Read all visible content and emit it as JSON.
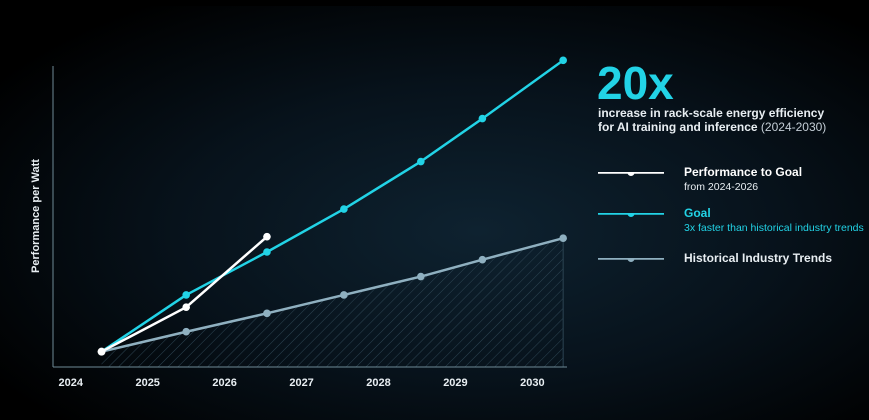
{
  "colors": {
    "background": "#000000",
    "goal": "#22d3e6",
    "performance": "#ffffff",
    "historical": "#8fb0c0",
    "axis": "#6e8a96",
    "text": "#e8eef2"
  },
  "headline": {
    "value": "20x",
    "line1": "increase in rack-scale energy efficiency",
    "line2": "for AI training and inference",
    "range": "(2024-2030)"
  },
  "legend": [
    {
      "key": "performance",
      "label": "Performance to Goal",
      "sublabel": "from 2024-2026",
      "color": "#ffffff"
    },
    {
      "key": "goal",
      "label": "Goal",
      "sublabel": "3x faster than historical industry trends",
      "color": "#22d3e6"
    },
    {
      "key": "historical",
      "label": "Historical Industry Trends",
      "sublabel": "",
      "color": "#8fb0c0"
    }
  ],
  "chart_data": {
    "type": "line",
    "title": "",
    "xlabel": "",
    "ylabel": "Performance per Watt",
    "x_ticks": [
      "2024",
      "2025",
      "2026",
      "2027",
      "2028",
      "2029",
      "2030"
    ],
    "xlim": [
      2023.6,
      2030.45
    ],
    "ylim": [
      0,
      21
    ],
    "grid": false,
    "y_ticks_shown": false,
    "series": [
      {
        "name": "Performance to Goal",
        "color": "#ffffff",
        "points": [
          [
            2024.4,
            1.0
          ],
          [
            2025.5,
            3.9
          ],
          [
            2026.55,
            8.5
          ]
        ]
      },
      {
        "name": "Goal",
        "color": "#22d3e6",
        "points": [
          [
            2024.4,
            1.0
          ],
          [
            2025.5,
            4.7
          ],
          [
            2026.55,
            7.5
          ],
          [
            2027.55,
            10.3
          ],
          [
            2028.55,
            13.4
          ],
          [
            2029.35,
            16.2
          ],
          [
            2030.4,
            20.0
          ]
        ]
      },
      {
        "name": "Historical Industry Trends",
        "color": "#8fb0c0",
        "fill_hatched": true,
        "points": [
          [
            2024.4,
            1.0
          ],
          [
            2025.5,
            2.3
          ],
          [
            2026.55,
            3.5
          ],
          [
            2027.55,
            4.7
          ],
          [
            2028.55,
            5.9
          ],
          [
            2029.35,
            7.0
          ],
          [
            2030.4,
            8.4
          ]
        ]
      }
    ]
  }
}
